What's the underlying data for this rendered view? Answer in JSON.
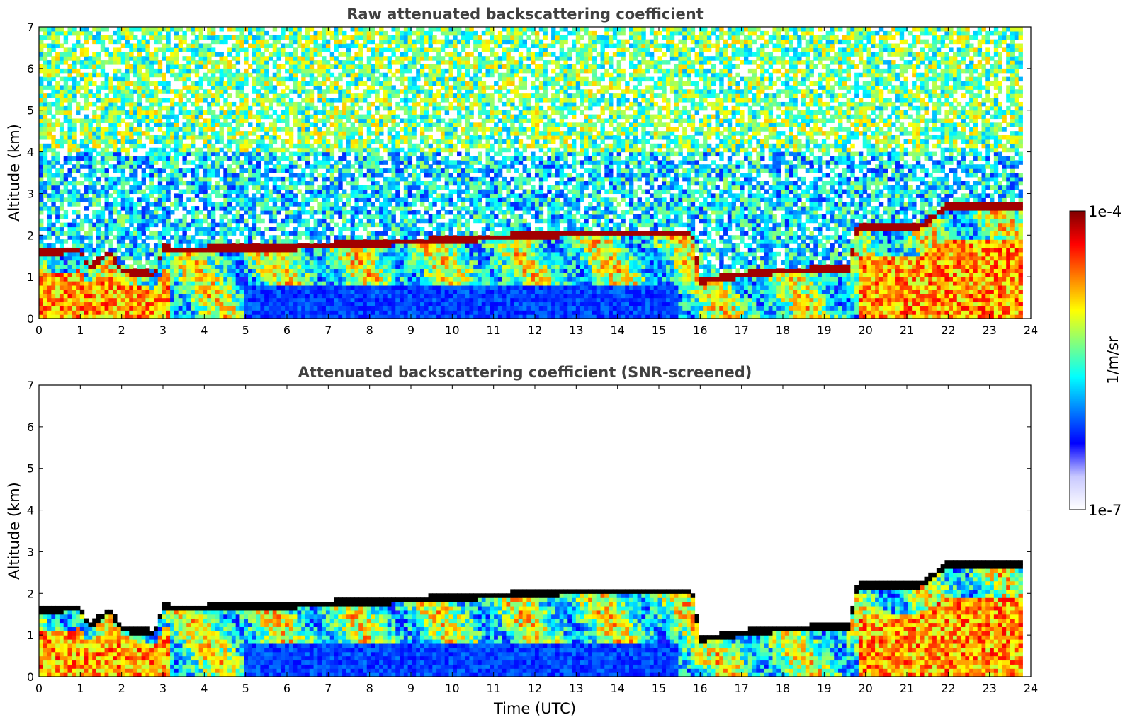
{
  "chart_data": [
    {
      "type": "heatmap",
      "title": "Raw attenuated backscattering coefficient",
      "xlabel": "",
      "ylabel": "Altitude (km)",
      "xlim": [
        0,
        24
      ],
      "ylim": [
        0,
        7
      ],
      "x_ticks": [
        0,
        1,
        2,
        3,
        4,
        5,
        6,
        7,
        8,
        9,
        10,
        11,
        12,
        13,
        14,
        15,
        16,
        17,
        18,
        19,
        20,
        21,
        22,
        23,
        24
      ],
      "y_ticks": [
        0,
        1,
        2,
        3,
        4,
        5,
        6,
        7
      ],
      "screened": false,
      "features": {
        "layer_top_km": [
          {
            "t": 0.0,
            "z": 1.6
          },
          {
            "t": 1.0,
            "z": 1.65
          },
          {
            "t": 1.2,
            "z": 1.2
          },
          {
            "t": 1.7,
            "z": 1.6
          },
          {
            "t": 2.0,
            "z": 1.15
          },
          {
            "t": 2.8,
            "z": 1.05
          },
          {
            "t": 3.0,
            "z": 1.7
          },
          {
            "t": 3.3,
            "z": 1.65
          },
          {
            "t": 6.0,
            "z": 1.72
          },
          {
            "t": 9.0,
            "z": 1.85
          },
          {
            "t": 11.0,
            "z": 1.95
          },
          {
            "t": 12.0,
            "z": 2.0
          },
          {
            "t": 13.0,
            "z": 2.05
          },
          {
            "t": 15.8,
            "z": 2.05
          },
          {
            "t": 16.0,
            "z": 0.9
          },
          {
            "t": 17.0,
            "z": 1.05
          },
          {
            "t": 18.0,
            "z": 1.15
          },
          {
            "t": 19.6,
            "z": 1.2
          },
          {
            "t": 19.8,
            "z": 2.2
          },
          {
            "t": 21.3,
            "z": 2.2
          },
          {
            "t": 22.0,
            "z": 2.7
          },
          {
            "t": 23.8,
            "z": 2.7
          }
        ],
        "data_end_hour": 23.8
      }
    },
    {
      "type": "heatmap",
      "title": "Attenuated backscattering coefficient (SNR-screened)",
      "xlabel": "Time (UTC)",
      "ylabel": "Altitude (km)",
      "xlim": [
        0,
        24
      ],
      "ylim": [
        0,
        7
      ],
      "x_ticks": [
        0,
        1,
        2,
        3,
        4,
        5,
        6,
        7,
        8,
        9,
        10,
        11,
        12,
        13,
        14,
        15,
        16,
        17,
        18,
        19,
        20,
        21,
        22,
        23,
        24
      ],
      "y_ticks": [
        0,
        1,
        2,
        3,
        4,
        5,
        6,
        7
      ],
      "screened": true,
      "features": {
        "data_end_hour": 23.8
      }
    }
  ],
  "colorbar": {
    "label": "1/m/sr",
    "max_label": "1e-4",
    "min_label": "1e-7",
    "scale": "log",
    "colormap": [
      "#ffffff",
      "#c8c8ff",
      "#0000ff",
      "#0080ff",
      "#00ffff",
      "#80ff80",
      "#ffff00",
      "#ff8000",
      "#ff0000",
      "#800000"
    ]
  }
}
